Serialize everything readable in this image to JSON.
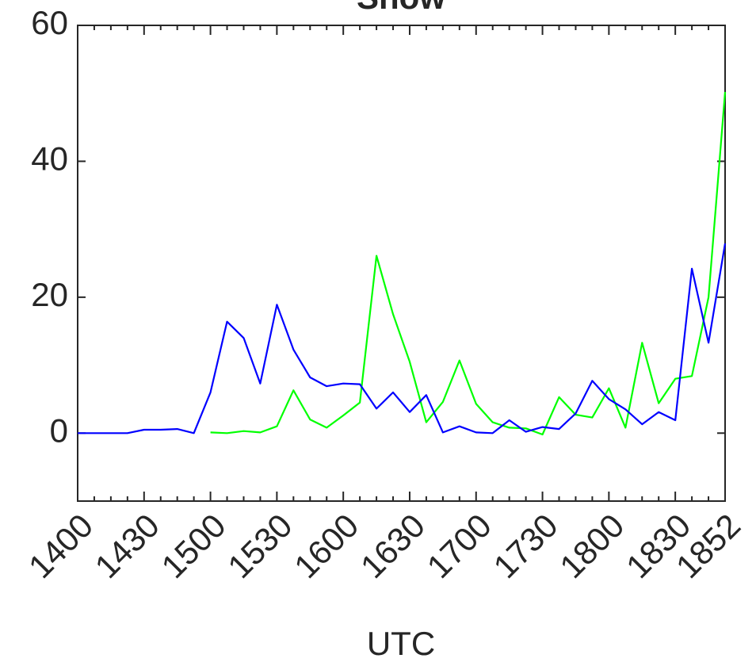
{
  "chart_data": {
    "type": "line",
    "title": "Snow",
    "x_label": "UTC",
    "categories": [
      "1400",
      null,
      null,
      null,
      "1430",
      null,
      null,
      null,
      "1500",
      null,
      null,
      null,
      "1530",
      null,
      null,
      null,
      "1600",
      null,
      null,
      null,
      "1630",
      null,
      null,
      null,
      "1700",
      null,
      null,
      null,
      "1730",
      null,
      null,
      null,
      "1800",
      null,
      null,
      null,
      "1830",
      null,
      null,
      "1852"
    ],
    "series": [
      {
        "color": "#00ff00",
        "values": [
          null,
          null,
          null,
          null,
          null,
          null,
          null,
          null,
          0.1,
          0,
          0.3,
          0.1,
          1,
          6.3,
          2,
          0.8,
          2.6,
          4.5,
          26.1,
          17.5,
          10.5,
          1.6,
          4.6,
          10.7,
          4.3,
          1.6,
          0.8,
          0.7,
          -0.2,
          5.3,
          2.7,
          2.3,
          6.6,
          0.8,
          13.3,
          4.4,
          8,
          8.4,
          20,
          50.2
        ]
      },
      {
        "color": "#0000ff",
        "values": [
          0,
          0,
          0,
          0,
          0.5,
          0.5,
          0.6,
          0,
          6,
          16.4,
          14,
          7.3,
          18.9,
          12.3,
          8.2,
          6.9,
          7.3,
          7.2,
          3.6,
          6,
          3.1,
          5.6,
          0.1,
          1,
          0.1,
          0,
          1.9,
          0.2,
          0.9,
          0.6,
          2.9,
          7.7,
          5,
          3.5,
          1.3,
          3.1,
          1.9,
          24.2,
          13.3,
          27.9
        ]
      }
    ],
    "ylim": [
      -10,
      60
    ],
    "yticks": [
      0,
      20,
      40,
      60
    ],
    "grid": false
  }
}
